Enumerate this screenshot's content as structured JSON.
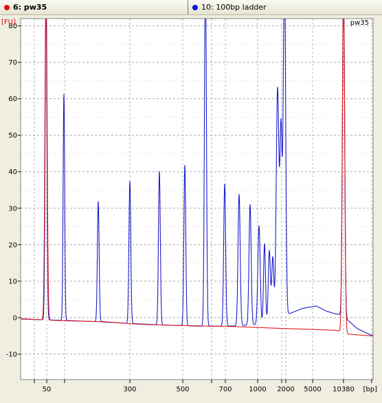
{
  "tabs": [
    {
      "label": "6: pw35",
      "dot_color": "#e01010",
      "active": true
    },
    {
      "label": "10: 100bp ladder",
      "dot_color": "#1010e0",
      "active": false
    }
  ],
  "chart_data": {
    "type": "line",
    "title": "pw35",
    "ylabel": "[FU]",
    "xlabel": "[bp]",
    "ylim": [
      -17,
      82
    ],
    "y_ticks": [
      80,
      70,
      60,
      50,
      40,
      30,
      20,
      10,
      0,
      -10
    ],
    "x_tick_labels": [
      "50",
      "300",
      "500",
      "700",
      "1000",
      "2000",
      "5000",
      "10380"
    ],
    "grid": true,
    "series": [
      {
        "name": "",
        "color": "#1c1ccc",
        "baseline": [
          [
            30,
            -0.4
          ],
          [
            65,
            -0.6
          ],
          [
            100,
            -0.8
          ],
          [
            150,
            -1.2
          ],
          [
            200,
            -1.7
          ],
          [
            250,
            -2.1
          ],
          [
            300,
            -2.4
          ],
          [
            340,
            -2.3
          ],
          [
            380,
            -1.8
          ],
          [
            395,
            -1.6
          ],
          [
            410,
            -0.8
          ],
          [
            420,
            1.0
          ],
          [
            440,
            2.5
          ],
          [
            460,
            3.2
          ],
          [
            475,
            1.8
          ],
          [
            485,
            1.2
          ],
          [
            495,
            0.8
          ],
          [
            505,
            -0.5
          ],
          [
            520,
            -3.0
          ],
          [
            540,
            -4.8
          ]
        ],
        "peaks": [
          {
            "pos": 67,
            "h": 90,
            "w": 1.8
          },
          {
            "pos": 93,
            "h": 62,
            "w": 1.6
          },
          {
            "pos": 143,
            "h": 33,
            "w": 1.8
          },
          {
            "pos": 189,
            "h": 39,
            "w": 1.9
          },
          {
            "pos": 232,
            "h": 42,
            "w": 1.9
          },
          {
            "pos": 269,
            "h": 44,
            "w": 1.9
          },
          {
            "pos": 299,
            "h": 99,
            "w": 2.0
          },
          {
            "pos": 327,
            "h": 39,
            "w": 2.0
          },
          {
            "pos": 348,
            "h": 36,
            "w": 2.2
          },
          {
            "pos": 364,
            "h": 33,
            "w": 2.2
          },
          {
            "pos": 377,
            "h": 27,
            "w": 2.4
          },
          {
            "pos": 385,
            "h": 22,
            "w": 2.0
          },
          {
            "pos": 392,
            "h": 20,
            "w": 2.2
          },
          {
            "pos": 397,
            "h": 18,
            "w": 2.2
          },
          {
            "pos": 404,
            "h": 64,
            "w": 2.8
          },
          {
            "pos": 409,
            "h": 51,
            "w": 2.2
          },
          {
            "pos": 414,
            "h": 95,
            "w": 2.5
          },
          {
            "pos": 500,
            "h": 95,
            "w": 2.2
          }
        ]
      },
      {
        "name": "",
        "color": "#e01818",
        "baseline": [
          [
            30,
            -0.3
          ],
          [
            60,
            -0.6
          ],
          [
            100,
            -0.9
          ],
          [
            150,
            -1.1
          ],
          [
            200,
            -1.8
          ],
          [
            250,
            -2.1
          ],
          [
            300,
            -2.3
          ],
          [
            350,
            -2.5
          ],
          [
            400,
            -2.9
          ],
          [
            450,
            -3.2
          ],
          [
            490,
            -3.5
          ],
          [
            505,
            -4.5
          ],
          [
            540,
            -5.0
          ]
        ],
        "peaks": [
          {
            "pos": 67,
            "h": 95,
            "w": 2.2
          },
          {
            "pos": 500,
            "h": 95,
            "w": 2.4
          }
        ]
      }
    ]
  }
}
